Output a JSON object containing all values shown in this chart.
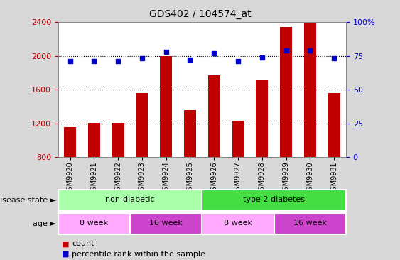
{
  "title": "GDS402 / 104574_at",
  "samples": [
    "GSM9920",
    "GSM9921",
    "GSM9922",
    "GSM9923",
    "GSM9924",
    "GSM9925",
    "GSM9926",
    "GSM9927",
    "GSM9928",
    "GSM9929",
    "GSM9930",
    "GSM9931"
  ],
  "counts": [
    1160,
    1210,
    1210,
    1560,
    2000,
    1360,
    1770,
    1230,
    1720,
    2340,
    2390,
    1560
  ],
  "percentiles": [
    71,
    71,
    71,
    73,
    78,
    72,
    77,
    71,
    74,
    79,
    79,
    73
  ],
  "ymin": 800,
  "ymax": 2400,
  "yticks": [
    800,
    1200,
    1600,
    2000,
    2400
  ],
  "y2ticks": [
    0,
    25,
    50,
    75,
    100
  ],
  "bar_color": "#C00000",
  "dot_color": "#0000CC",
  "background_color": "#D8D8D8",
  "plot_bg_color": "#FFFFFF",
  "disease_state_label": "disease state",
  "age_label": "age",
  "disease_states": [
    {
      "label": "non-diabetic",
      "start": 0,
      "end": 5,
      "color": "#AAFFAA"
    },
    {
      "label": "type 2 diabetes",
      "start": 6,
      "end": 11,
      "color": "#44DD44"
    }
  ],
  "ages": [
    {
      "label": "8 week",
      "start": 0,
      "end": 2,
      "color": "#FFAAFF"
    },
    {
      "label": "16 week",
      "start": 3,
      "end": 5,
      "color": "#CC44CC"
    },
    {
      "label": "8 week",
      "start": 6,
      "end": 8,
      "color": "#FFAAFF"
    },
    {
      "label": "16 week",
      "start": 9,
      "end": 11,
      "color": "#CC44CC"
    }
  ],
  "legend_count_color": "#C00000",
  "legend_pct_color": "#0000CC",
  "count_label": "count",
  "pct_label": "percentile rank within the sample",
  "grid_dotted_at": [
    1200,
    1600,
    2000
  ]
}
